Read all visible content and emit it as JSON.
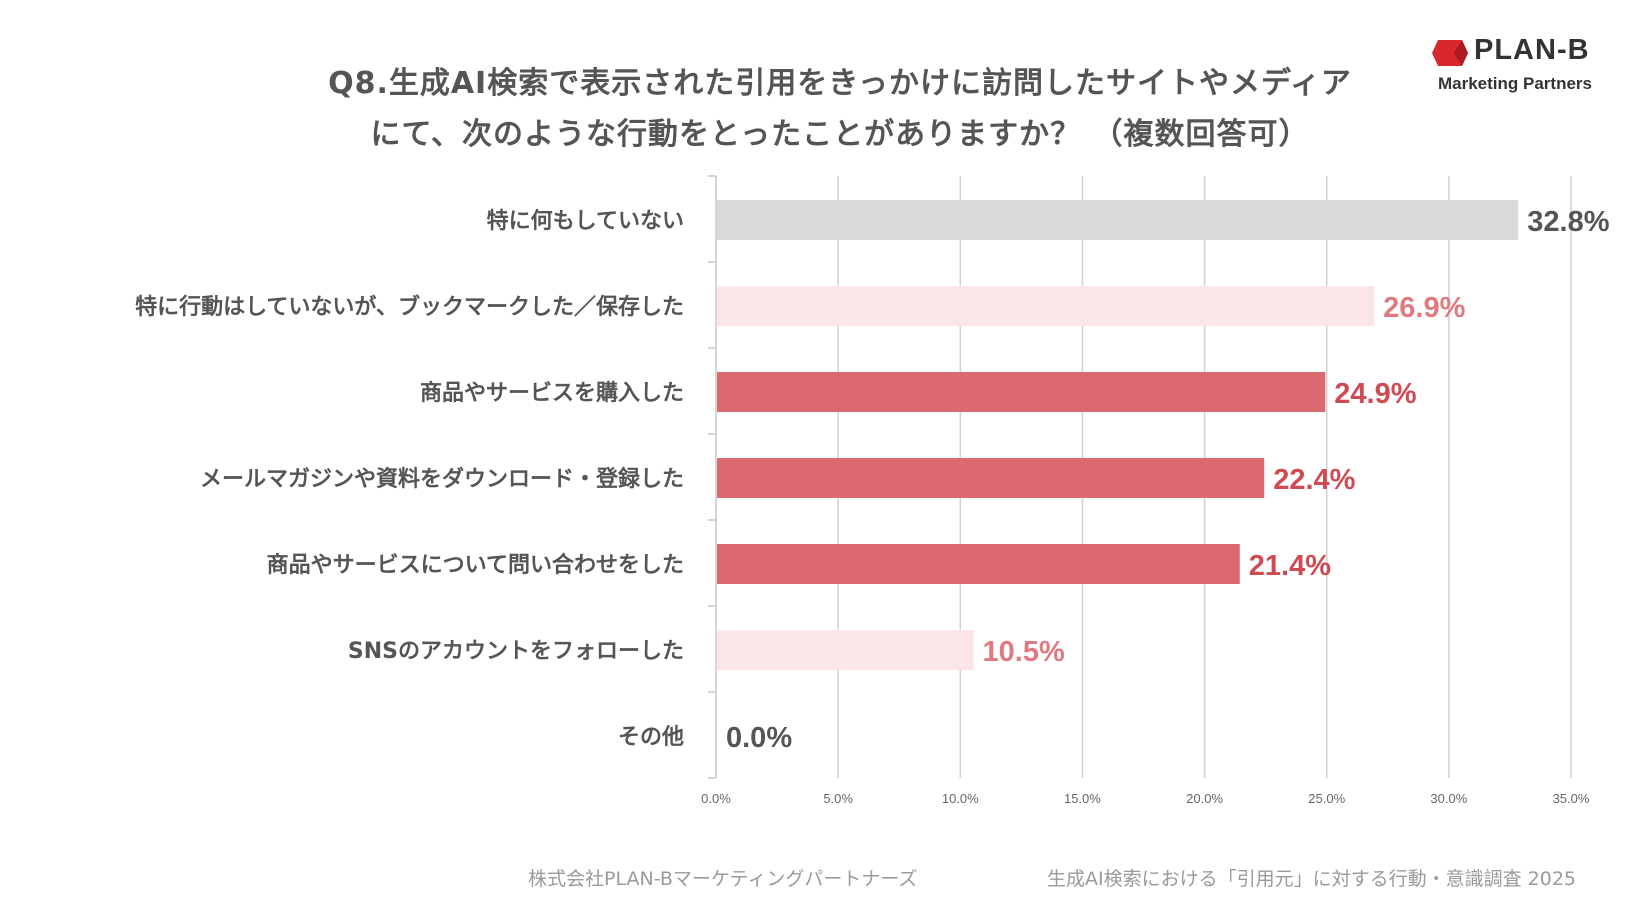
{
  "title": {
    "line1": "Q8.生成AI検索で表示された引用をきっかけに訪問したサイトやメディア",
    "line2": "にて、次のような行動をとったことがありますか？ （複数回答可）"
  },
  "logo": {
    "name": "PLAN-B",
    "subtitle": "Marketing Partners",
    "color": "#d9272e"
  },
  "footer": {
    "company": "株式会社PLAN-Bマーケティングパートナーズ",
    "survey": "生成AI検索における「引用元」に対する行動・意識調査 2025"
  },
  "chart_data": {
    "type": "bar",
    "orientation": "horizontal",
    "categories": [
      "特に何もしていない",
      "特に行動はしていないが、ブックマークした／保存した",
      "商品やサービスを購入した",
      "メールマガジンや資料をダウンロード・登録した",
      "商品やサービスについて問い合わせをした",
      "SNSのアカウントをフォローした",
      "その他"
    ],
    "values": [
      32.8,
      26.9,
      24.9,
      22.4,
      21.4,
      10.5,
      0.0
    ],
    "value_labels": [
      "32.8%",
      "26.9%",
      "24.9%",
      "22.4%",
      "21.4%",
      "10.5%",
      "0.0%"
    ],
    "bar_colors": [
      "#d9d9d9",
      "#fbe5e6",
      "#dc6870",
      "#dc6870",
      "#dc6870",
      "#fbe5e6",
      "#dc6870"
    ],
    "label_colors": [
      "#555555",
      "#e07a80",
      "#d04a53",
      "#d04a53",
      "#d04a53",
      "#e07a80",
      "#555555"
    ],
    "xlim": [
      0,
      35
    ],
    "xticks": [
      0,
      5,
      10,
      15,
      20,
      25,
      30,
      35
    ],
    "xtick_labels": [
      "0.0%",
      "5.0%",
      "10.0%",
      "15.0%",
      "20.0%",
      "25.0%",
      "30.0%",
      "35.0%"
    ],
    "grid": true,
    "legend": "none"
  }
}
